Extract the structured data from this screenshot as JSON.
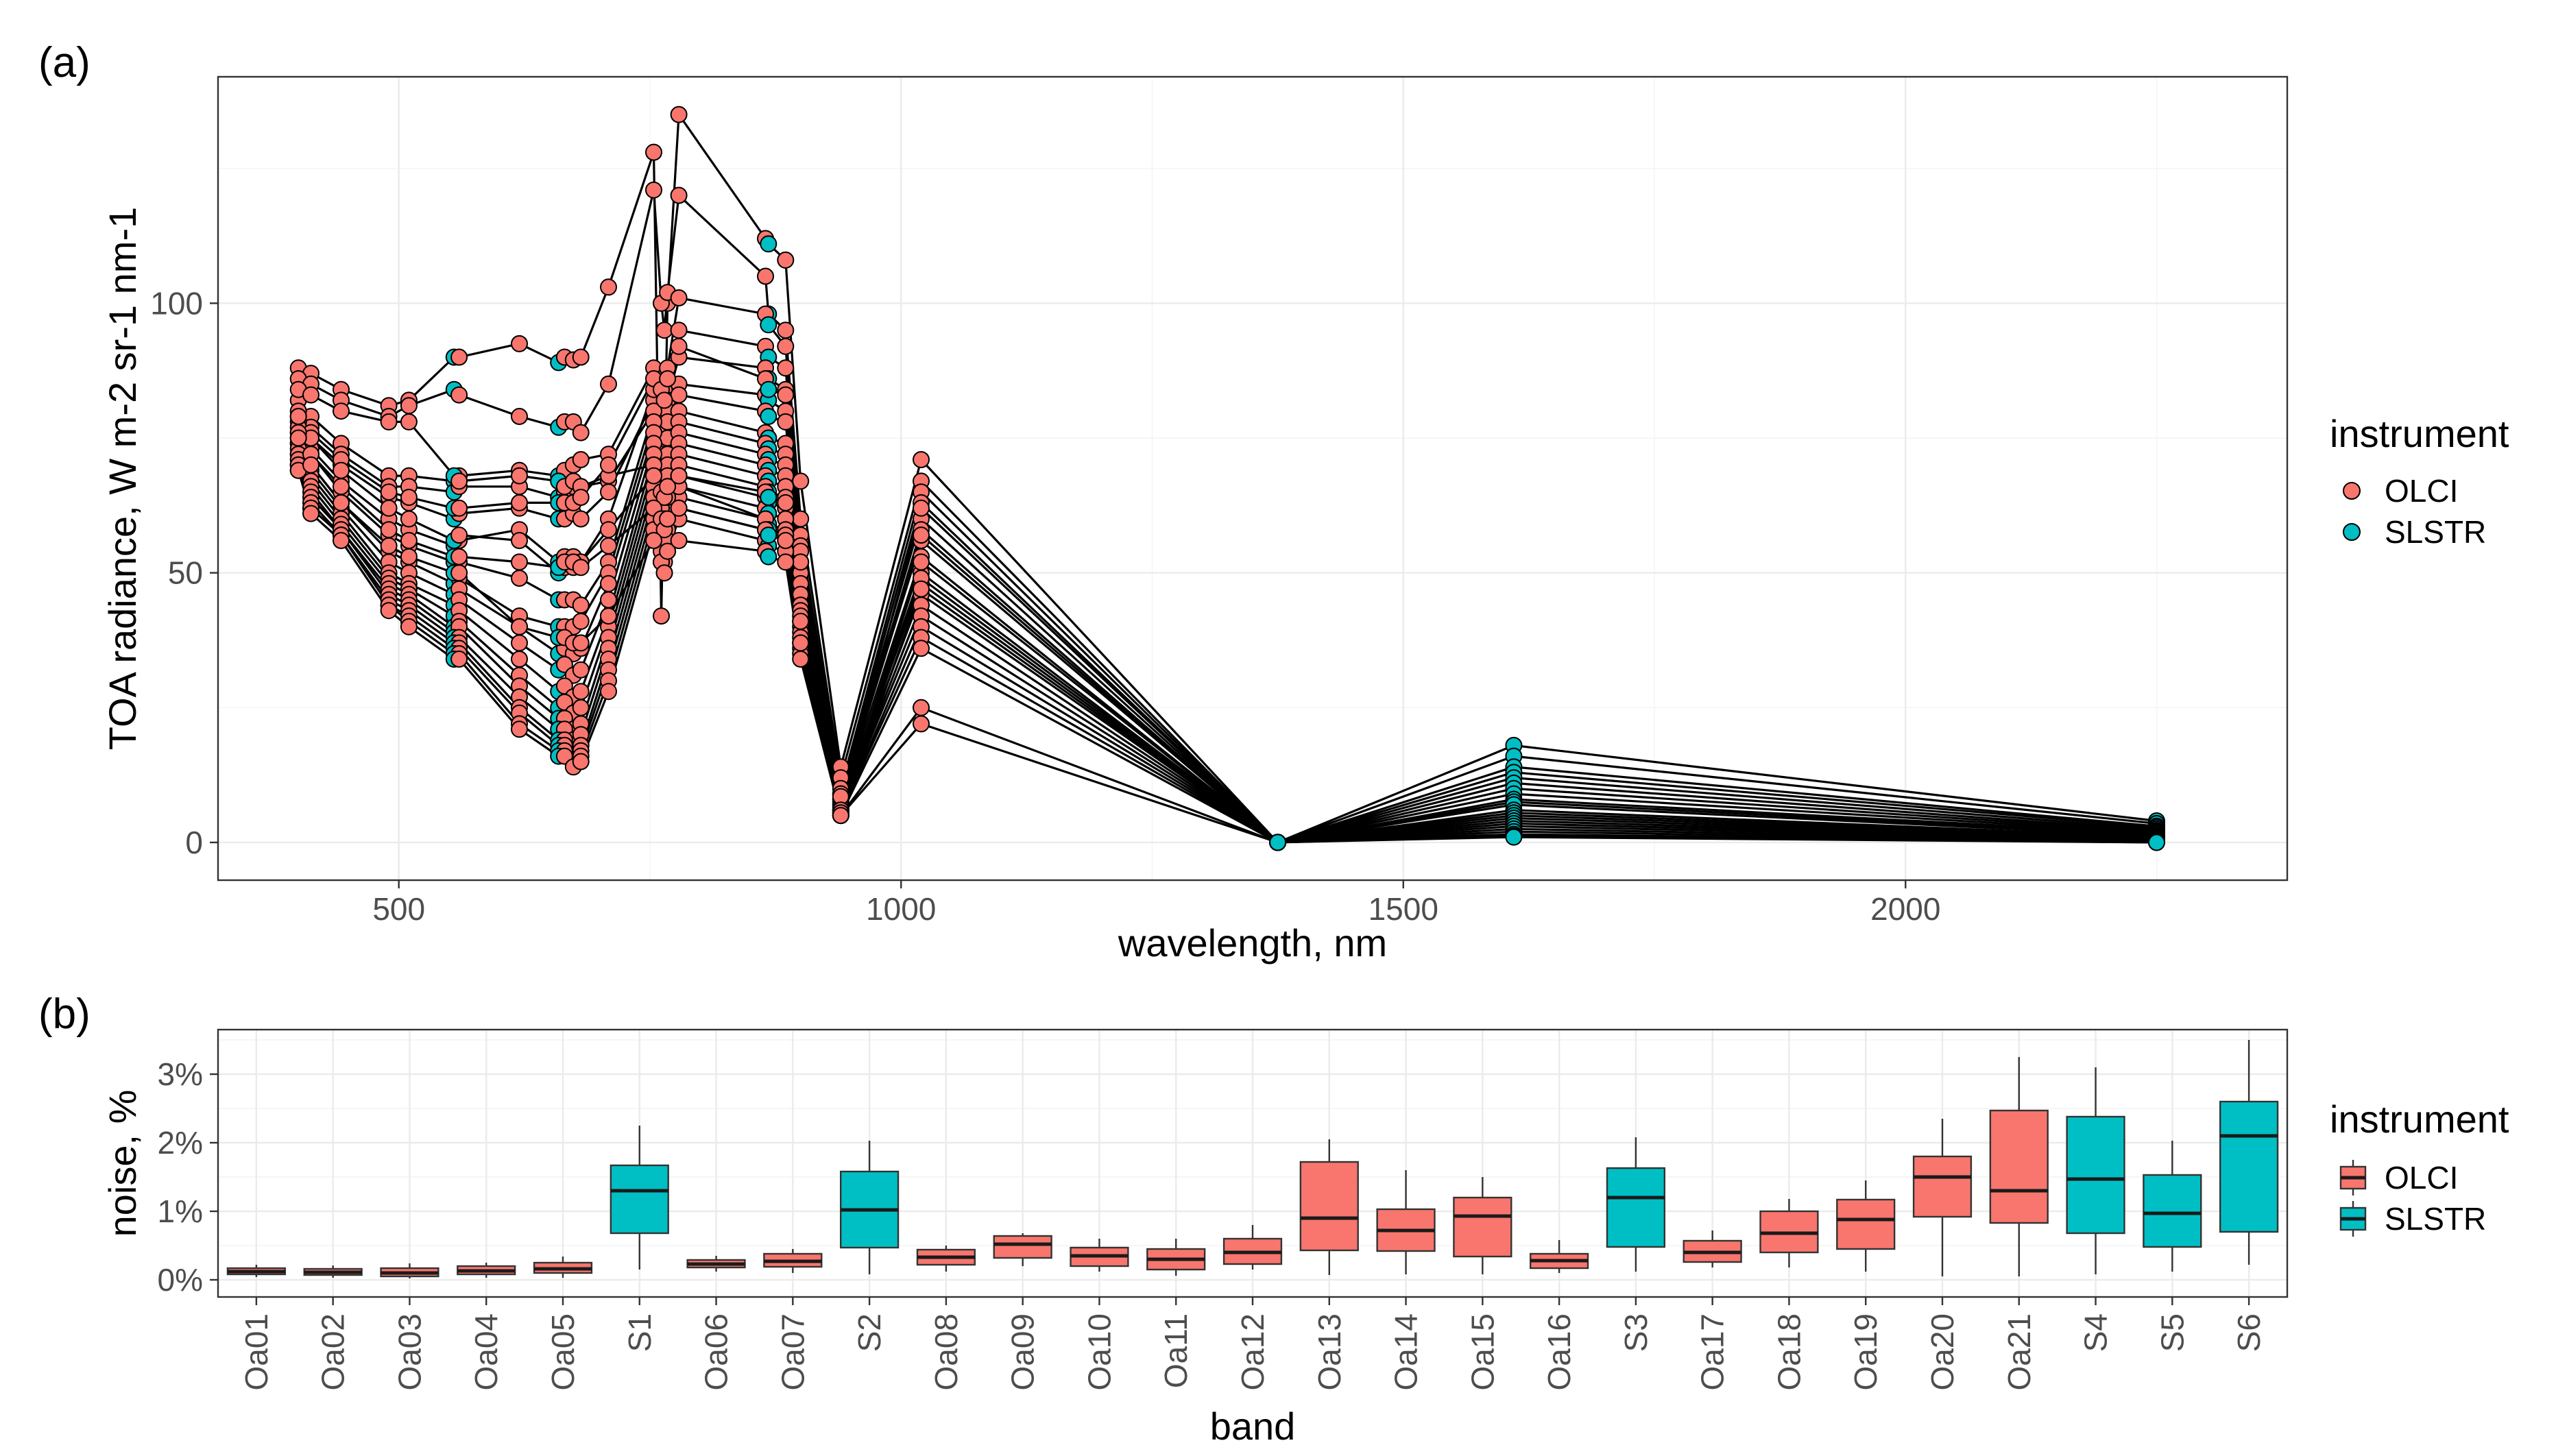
{
  "colors": {
    "OLCI": "#F8766D",
    "SLSTR": "#00BFC4"
  },
  "panel_a": {
    "tag": "(a)",
    "legend": {
      "title": "instrument",
      "items": [
        "OLCI",
        "SLSTR"
      ]
    }
  },
  "panel_b": {
    "tag": "(b)",
    "legend": {
      "title": "instrument",
      "items": [
        "OLCI",
        "SLSTR"
      ]
    }
  },
  "chart_data": [
    {
      "type": "line",
      "title": "",
      "xlabel": "wavelength, nm",
      "ylabel": "TOA radiance, W m-2 sr-1 nm-1",
      "xlim": [
        320,
        2380
      ],
      "ylim": [
        -7,
        142
      ],
      "x_ticks": [
        500,
        1000,
        1500,
        2000
      ],
      "y_ticks": [
        0,
        50,
        100
      ],
      "grid": true,
      "legend_position": "right",
      "bands": [
        {
          "wl": 400,
          "inst": "OLCI"
        },
        {
          "wl": 412.5,
          "inst": "OLCI"
        },
        {
          "wl": 442.5,
          "inst": "OLCI"
        },
        {
          "wl": 490,
          "inst": "OLCI"
        },
        {
          "wl": 510,
          "inst": "OLCI"
        },
        {
          "wl": 555,
          "inst": "SLSTR"
        },
        {
          "wl": 560,
          "inst": "OLCI"
        },
        {
          "wl": 620,
          "inst": "OLCI"
        },
        {
          "wl": 659,
          "inst": "SLSTR"
        },
        {
          "wl": 665,
          "inst": "OLCI"
        },
        {
          "wl": 673.75,
          "inst": "OLCI"
        },
        {
          "wl": 681.25,
          "inst": "OLCI"
        },
        {
          "wl": 708.75,
          "inst": "OLCI"
        },
        {
          "wl": 753.75,
          "inst": "OLCI"
        },
        {
          "wl": 761.25,
          "inst": "OLCI"
        },
        {
          "wl": 764.375,
          "inst": "OLCI"
        },
        {
          "wl": 767.5,
          "inst": "OLCI"
        },
        {
          "wl": 778.75,
          "inst": "OLCI"
        },
        {
          "wl": 865,
          "inst": "OLCI"
        },
        {
          "wl": 868,
          "inst": "SLSTR"
        },
        {
          "wl": 885,
          "inst": "OLCI"
        },
        {
          "wl": 900,
          "inst": "OLCI"
        },
        {
          "wl": 940,
          "inst": "OLCI"
        },
        {
          "wl": 1020,
          "inst": "OLCI"
        },
        {
          "wl": 1375,
          "inst": "SLSTR"
        },
        {
          "wl": 1610,
          "inst": "SLSTR"
        },
        {
          "wl": 2250,
          "inst": "SLSTR"
        }
      ],
      "series": [
        {
          "values": [
            88,
            87,
            84,
            81,
            82,
            90,
            90,
            92.5,
            89,
            90,
            89.5,
            90,
            103,
            128,
            42,
            70,
            100,
            135,
            112,
            111,
            108,
            67,
            14,
            71,
            0,
            18,
            4
          ]
        },
        {
          "values": [
            86,
            85,
            82,
            79,
            81,
            84,
            83,
            79,
            77,
            78,
            78,
            76,
            85,
            121,
            100,
            95,
            102,
            120,
            105,
            98,
            95,
            60,
            12,
            67,
            0,
            16,
            3.5
          ]
        },
        {
          "values": [
            82,
            79,
            74,
            68,
            68,
            67,
            68,
            69,
            68,
            69,
            70,
            71,
            72,
            88,
            86,
            84,
            88,
            101,
            98,
            96,
            92,
            57,
            10,
            65,
            0,
            14,
            3
          ]
        },
        {
          "values": [
            80,
            77,
            72,
            66,
            66,
            65,
            66,
            66,
            64,
            65,
            66,
            66,
            67,
            80,
            78,
            77,
            82,
            95,
            92,
            90,
            88,
            55,
            9,
            63,
            0,
            13,
            2.8
          ]
        },
        {
          "values": [
            78,
            75,
            70,
            64,
            63,
            60,
            61,
            62,
            60,
            60,
            61,
            60,
            65,
            82,
            80,
            78,
            82,
            90,
            88,
            86,
            84,
            54,
            9,
            60,
            0,
            12,
            2.5
          ]
        },
        {
          "values": [
            77,
            73,
            67,
            60,
            58,
            55,
            56,
            58,
            52,
            53,
            53,
            52,
            60,
            84,
            80,
            77,
            80,
            85,
            83,
            82,
            80,
            52,
            8,
            58,
            0,
            11,
            2.2
          ]
        },
        {
          "values": [
            76,
            72,
            65,
            57,
            55,
            52,
            52,
            49,
            45,
            45,
            45,
            44,
            52,
            80,
            76,
            73,
            78,
            83,
            80,
            79,
            78,
            50,
            8,
            56,
            0,
            10,
            2
          ]
        },
        {
          "values": [
            75,
            70,
            63,
            54,
            52,
            48,
            49,
            42,
            40,
            40,
            40,
            41,
            50,
            78,
            72,
            70,
            75,
            80,
            76,
            75,
            74,
            48,
            7.5,
            53,
            0,
            9,
            1.8
          ]
        },
        {
          "values": [
            74,
            69,
            62,
            52,
            50,
            46,
            47,
            40,
            35,
            36,
            35,
            36,
            48,
            76,
            70,
            68,
            72,
            78,
            74,
            73,
            72,
            46,
            7,
            50,
            0,
            8,
            1.6
          ]
        },
        {
          "values": [
            74,
            68,
            61,
            50,
            48,
            44,
            45,
            37,
            32,
            33,
            31,
            32,
            45,
            74,
            68,
            66,
            70,
            76,
            72,
            71,
            70,
            44,
            7,
            48,
            0,
            7.5,
            1.4
          ]
        },
        {
          "values": [
            73,
            67,
            60,
            49,
            47,
            42,
            43,
            34,
            28,
            29,
            27,
            28,
            42,
            72,
            66,
            64,
            68,
            74,
            70,
            69,
            68,
            43,
            6.5,
            46,
            0,
            7,
            1.2
          ]
        },
        {
          "values": [
            72,
            66,
            59,
            48,
            46,
            40,
            41,
            31,
            25,
            26,
            24,
            25,
            40,
            70,
            64,
            62,
            66,
            72,
            68,
            67,
            66,
            42,
            6,
            44,
            0,
            6,
            1
          ]
        },
        {
          "values": [
            72,
            65,
            58,
            47,
            45,
            39,
            40,
            29,
            23,
            23,
            21,
            22,
            38,
            68,
            62,
            60,
            64,
            70,
            66,
            65,
            64,
            41,
            6,
            42,
            0,
            5.5,
            0.9
          ]
        },
        {
          "values": [
            71,
            64,
            58,
            46,
            44,
            38,
            38,
            27,
            21,
            21,
            19,
            20,
            36,
            66,
            60,
            58,
            62,
            68,
            64,
            63,
            62,
            40,
            5.5,
            40,
            0,
            5,
            0.8
          ]
        },
        {
          "values": [
            70,
            63,
            57,
            45,
            43,
            37,
            37,
            25,
            19,
            19,
            17,
            18,
            34,
            64,
            58,
            56,
            60,
            66,
            62,
            61,
            60,
            39,
            5.5,
            38,
            0,
            4.5,
            0.7
          ]
        },
        {
          "values": [
            70,
            62,
            57,
            44,
            42,
            36,
            36,
            24,
            18,
            18,
            16,
            17,
            32,
            62,
            56,
            54,
            58,
            64,
            60,
            59,
            58,
            38,
            5,
            36,
            0,
            4,
            0.6
          ]
        },
        {
          "values": [
            69,
            62,
            57,
            44,
            41,
            35,
            35,
            22,
            17,
            17,
            15,
            16,
            30,
            60,
            54,
            52,
            56,
            62,
            58,
            57,
            56,
            37,
            5,
            25,
            0,
            3.5,
            0.5
          ]
        },
        {
          "values": [
            69,
            61,
            56,
            43,
            40,
            34,
            34,
            21,
            16,
            16,
            14,
            15,
            28,
            58,
            52,
            50,
            54,
            60,
            56,
            55,
            54,
            36,
            5,
            22,
            0,
            3,
            0.4
          ]
        },
        {
          "values": [
            84,
            83,
            80,
            78,
            78,
            68,
            67,
            68,
            67,
            66,
            67,
            66,
            68,
            70,
            62,
            60,
            64,
            66,
            60,
            58,
            57,
            35,
            6,
            62,
            0,
            2.5,
            0.3
          ]
        },
        {
          "values": [
            79,
            76,
            71,
            65,
            64,
            62,
            62,
            63,
            63,
            63,
            63,
            64,
            70,
            86,
            84,
            82,
            86,
            92,
            86,
            84,
            83,
            52,
            8.5,
            57,
            0,
            2,
            0.2
          ]
        },
        {
          "values": [
            79,
            75,
            69,
            62,
            60,
            56,
            57,
            56,
            50,
            51,
            51,
            52,
            58,
            68,
            65,
            64,
            66,
            68,
            65,
            64,
            63,
            41,
            6,
            52,
            0,
            1.5,
            0.1
          ]
        },
        {
          "values": [
            76,
            72,
            66,
            58,
            56,
            53,
            53,
            52,
            51,
            52,
            52,
            51,
            55,
            62,
            60,
            58,
            60,
            62,
            58,
            57,
            56,
            37,
            5.5,
            49,
            0,
            1.2,
            0
          ]
        },
        {
          "values": [
            75,
            70,
            63,
            55,
            53,
            50,
            50,
            40,
            38,
            38,
            37,
            37,
            42,
            56,
            52,
            50,
            54,
            56,
            54,
            53,
            52,
            34,
            5,
            47,
            0,
            1,
            0
          ]
        }
      ]
    },
    {
      "type": "box",
      "title": "",
      "xlabel": "band",
      "ylabel": "noise, %",
      "ylim": [
        -0.25,
        3.65
      ],
      "y_ticks": [
        0,
        1,
        2,
        3
      ],
      "y_tick_labels": [
        "0%",
        "1%",
        "2%",
        "3%"
      ],
      "grid": true,
      "legend_position": "right",
      "categories": [
        "Oa01",
        "Oa02",
        "Oa03",
        "Oa04",
        "Oa05",
        "S1",
        "Oa06",
        "Oa07",
        "S2",
        "Oa08",
        "Oa09",
        "Oa10",
        "Oa11",
        "Oa12",
        "Oa13",
        "Oa14",
        "Oa15",
        "Oa16",
        "S3",
        "Oa17",
        "Oa18",
        "Oa19",
        "Oa20",
        "Oa21",
        "S4",
        "S5",
        "S6"
      ],
      "instrument": [
        "OLCI",
        "OLCI",
        "OLCI",
        "OLCI",
        "OLCI",
        "SLSTR",
        "OLCI",
        "OLCI",
        "SLSTR",
        "OLCI",
        "OLCI",
        "OLCI",
        "OLCI",
        "OLCI",
        "OLCI",
        "OLCI",
        "OLCI",
        "OLCI",
        "SLSTR",
        "OLCI",
        "OLCI",
        "OLCI",
        "OLCI",
        "OLCI",
        "SLSTR",
        "SLSTR",
        "SLSTR"
      ],
      "boxes": [
        {
          "min": 0.04,
          "q1": 0.08,
          "median": 0.12,
          "q3": 0.17,
          "max": 0.22
        },
        {
          "min": 0.03,
          "q1": 0.07,
          "median": 0.11,
          "q3": 0.16,
          "max": 0.21
        },
        {
          "min": 0.02,
          "q1": 0.05,
          "median": 0.1,
          "q3": 0.17,
          "max": 0.24
        },
        {
          "min": 0.03,
          "q1": 0.08,
          "median": 0.13,
          "q3": 0.2,
          "max": 0.25
        },
        {
          "min": 0.03,
          "q1": 0.1,
          "median": 0.16,
          "q3": 0.25,
          "max": 0.34
        },
        {
          "min": 0.15,
          "q1": 0.68,
          "median": 1.3,
          "q3": 1.67,
          "max": 2.25
        },
        {
          "min": 0.12,
          "q1": 0.18,
          "median": 0.23,
          "q3": 0.29,
          "max": 0.35
        },
        {
          "min": 0.1,
          "q1": 0.19,
          "median": 0.27,
          "q3": 0.38,
          "max": 0.45
        },
        {
          "min": 0.08,
          "q1": 0.47,
          "median": 1.02,
          "q3": 1.58,
          "max": 2.03
        },
        {
          "min": 0.12,
          "q1": 0.22,
          "median": 0.33,
          "q3": 0.44,
          "max": 0.5
        },
        {
          "min": 0.2,
          "q1": 0.32,
          "median": 0.52,
          "q3": 0.64,
          "max": 0.68
        },
        {
          "min": 0.12,
          "q1": 0.2,
          "median": 0.35,
          "q3": 0.47,
          "max": 0.6
        },
        {
          "min": 0.06,
          "q1": 0.15,
          "median": 0.3,
          "q3": 0.45,
          "max": 0.6
        },
        {
          "min": 0.15,
          "q1": 0.23,
          "median": 0.4,
          "q3": 0.6,
          "max": 0.8
        },
        {
          "min": 0.07,
          "q1": 0.43,
          "median": 0.9,
          "q3": 1.72,
          "max": 2.05
        },
        {
          "min": 0.08,
          "q1": 0.42,
          "median": 0.72,
          "q3": 1.03,
          "max": 1.6
        },
        {
          "min": 0.08,
          "q1": 0.34,
          "median": 0.93,
          "q3": 1.2,
          "max": 1.5
        },
        {
          "min": 0.1,
          "q1": 0.17,
          "median": 0.28,
          "q3": 0.38,
          "max": 0.58
        },
        {
          "min": 0.12,
          "q1": 0.48,
          "median": 1.2,
          "q3": 1.63,
          "max": 2.08
        },
        {
          "min": 0.18,
          "q1": 0.26,
          "median": 0.4,
          "q3": 0.57,
          "max": 0.72
        },
        {
          "min": 0.18,
          "q1": 0.4,
          "median": 0.68,
          "q3": 1.0,
          "max": 1.18
        },
        {
          "min": 0.12,
          "q1": 0.45,
          "median": 0.88,
          "q3": 1.17,
          "max": 1.45
        },
        {
          "min": 0.05,
          "q1": 0.92,
          "median": 1.5,
          "q3": 1.8,
          "max": 2.35
        },
        {
          "min": 0.05,
          "q1": 0.83,
          "median": 1.3,
          "q3": 2.47,
          "max": 3.25
        },
        {
          "min": 0.08,
          "q1": 0.68,
          "median": 1.47,
          "q3": 2.38,
          "max": 3.1
        },
        {
          "min": 0.12,
          "q1": 0.48,
          "median": 0.97,
          "q3": 1.53,
          "max": 2.03
        },
        {
          "min": 0.22,
          "q1": 0.7,
          "median": 2.1,
          "q3": 2.6,
          "max": 3.5
        }
      ]
    }
  ]
}
